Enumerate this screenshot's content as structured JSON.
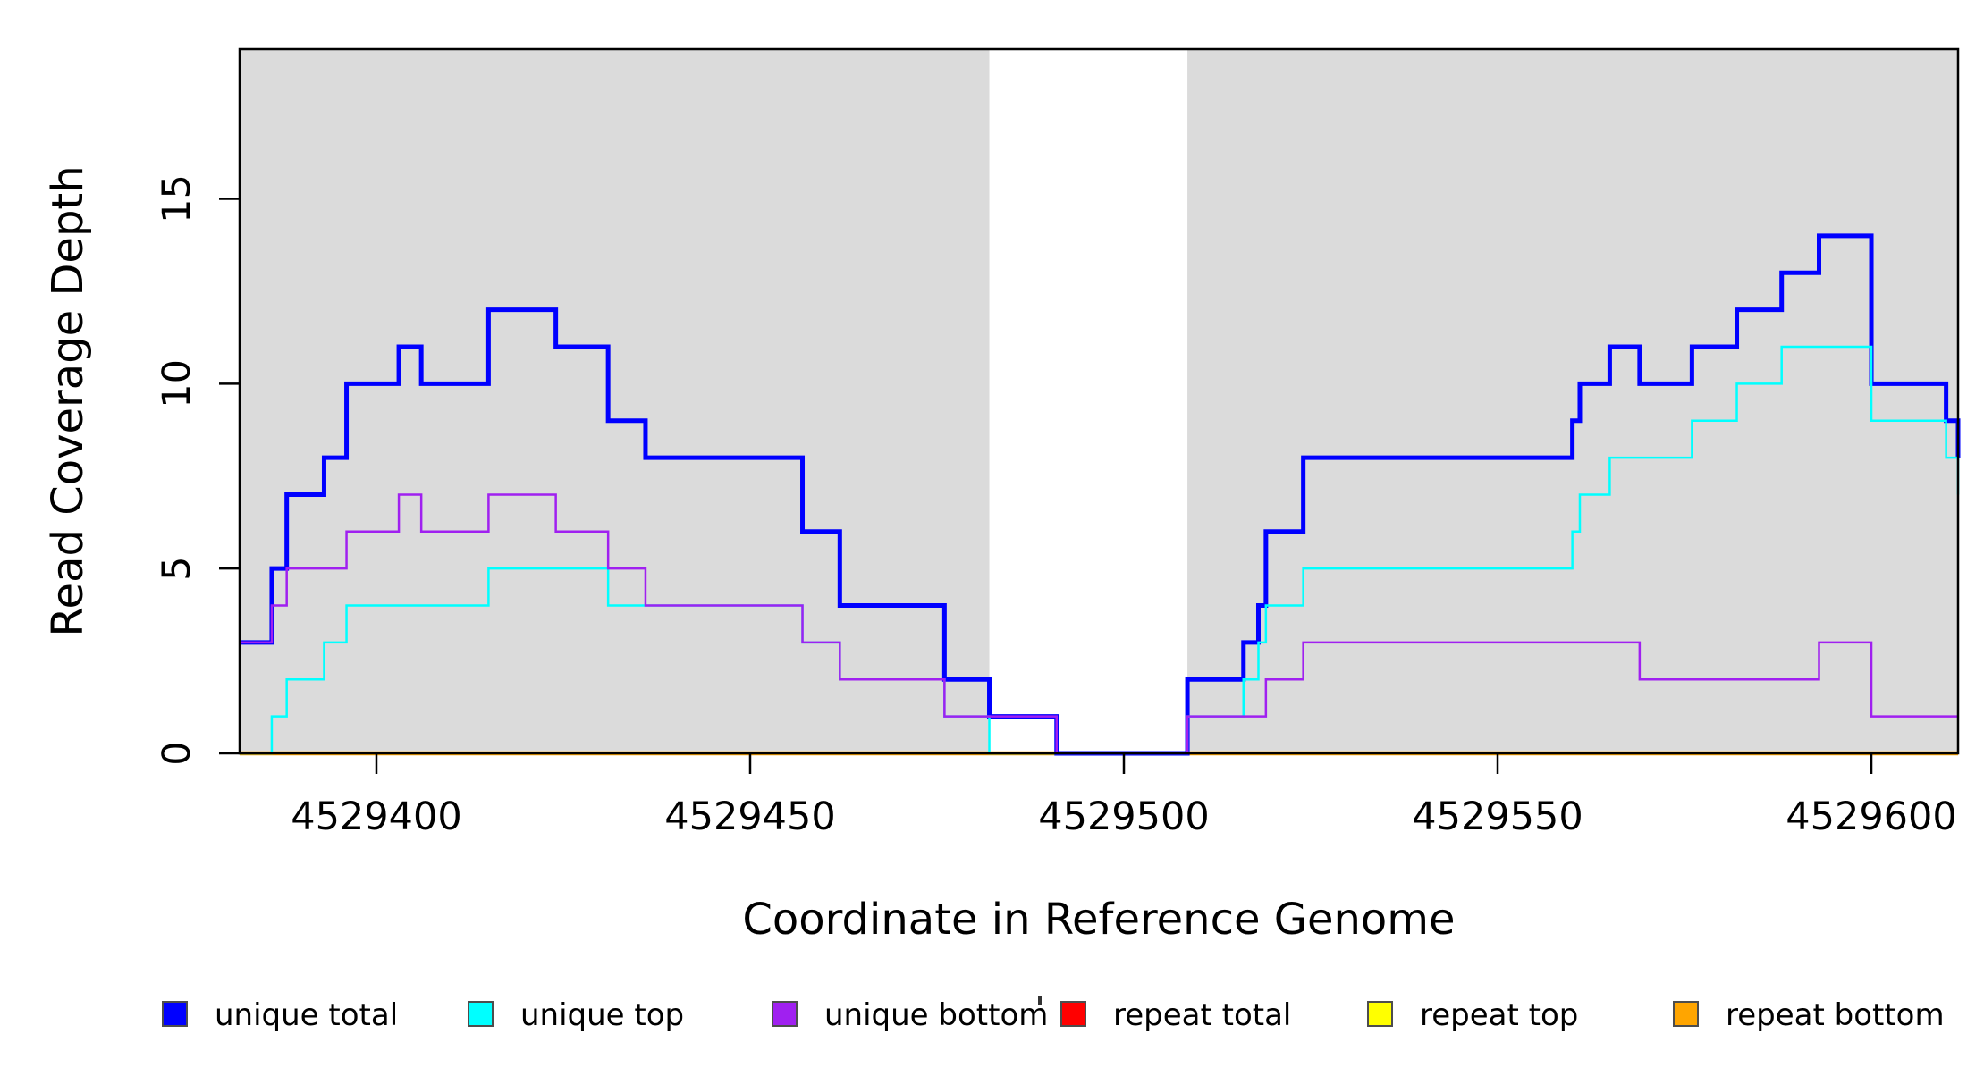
{
  "figure": {
    "x_axis_title": "Coordinate in Reference Genome",
    "y_axis_title": "Read Coverage Depth",
    "background_color": "#FFFFFF",
    "shaded_band_color": "#DBDBDB"
  },
  "legend": {
    "items": [
      {
        "label": "unique total",
        "color": "#0000FF"
      },
      {
        "label": "unique top",
        "color": "#00FFFF"
      },
      {
        "label": "unique bottom",
        "color": "#A020F0"
      },
      {
        "label": "repeat total",
        "color": "#FF0000"
      },
      {
        "label": "repeat top",
        "color": "#FFFF00"
      },
      {
        "label": "repeat bottom",
        "color": "#FFA500"
      }
    ]
  },
  "chart_data": {
    "type": "line",
    "subtype": "step-after-coverage",
    "title": "",
    "xlabel": "Coordinate in Reference Genome",
    "ylabel": "Read Coverage Depth",
    "xlim": [
      4529381.7,
      4529611.6
    ],
    "ylim": [
      0,
      19.05
    ],
    "grid": false,
    "legend_position": "bottom",
    "x_ticks": [
      {
        "value": 4529400,
        "label": "4529400"
      },
      {
        "value": 4529450,
        "label": "4529450"
      },
      {
        "value": 4529500,
        "label": "4529500"
      },
      {
        "value": 4529550,
        "label": "4529550"
      },
      {
        "value": 4529600,
        "label": "4529600"
      }
    ],
    "y_ticks": [
      {
        "value": 0,
        "label": "0"
      },
      {
        "value": 5,
        "label": "5"
      },
      {
        "value": 10,
        "label": "10"
      },
      {
        "value": 15,
        "label": "15"
      }
    ],
    "shaded_regions": [
      {
        "from": 4529381.7,
        "to": 4529482.0
      },
      {
        "from": 4529508.5,
        "to": 4529611.6
      }
    ],
    "series": [
      {
        "name": "repeat total",
        "color": "#FF0000",
        "line_width": 2.5,
        "points": [
          [
            4529381.7,
            0
          ]
        ]
      },
      {
        "name": "repeat top",
        "color": "#FFFF00",
        "line_width": 2.5,
        "points": [
          [
            4529381.7,
            0
          ]
        ]
      },
      {
        "name": "repeat bottom",
        "color": "#FFA500",
        "line_width": 4.5,
        "points": [
          [
            4529381.7,
            0
          ]
        ]
      },
      {
        "name": "unique total",
        "color": "#0000FF",
        "line_width": 5,
        "points": [
          [
            4529381.7,
            3
          ],
          [
            4529386,
            5
          ],
          [
            4529388,
            7
          ],
          [
            4529393,
            8
          ],
          [
            4529396,
            10
          ],
          [
            4529403,
            11
          ],
          [
            4529406,
            10
          ],
          [
            4529415,
            12
          ],
          [
            4529424,
            11
          ],
          [
            4529431,
            9
          ],
          [
            4529436,
            8
          ],
          [
            4529457,
            6
          ],
          [
            4529462,
            4
          ],
          [
            4529476,
            2
          ],
          [
            4529482,
            1
          ],
          [
            4529491,
            0
          ],
          [
            4529508.5,
            2
          ],
          [
            4529516,
            3
          ],
          [
            4529518,
            4
          ],
          [
            4529519,
            6
          ],
          [
            4529524,
            8
          ],
          [
            4529560,
            9
          ],
          [
            4529561,
            10
          ],
          [
            4529565,
            11
          ],
          [
            4529569,
            10
          ],
          [
            4529576,
            11
          ],
          [
            4529582,
            12
          ],
          [
            4529588,
            13
          ],
          [
            4529593,
            14
          ],
          [
            4529600,
            10
          ],
          [
            4529610,
            9
          ],
          [
            4529611.6,
            8
          ]
        ]
      },
      {
        "name": "unique top",
        "color": "#00FFFF",
        "line_width": 2.5,
        "points": [
          [
            4529381.7,
            0
          ],
          [
            4529386,
            1
          ],
          [
            4529388,
            2
          ],
          [
            4529393,
            3
          ],
          [
            4529396,
            4
          ],
          [
            4529415,
            5
          ],
          [
            4529431,
            4
          ],
          [
            4529457,
            3
          ],
          [
            4529462,
            2
          ],
          [
            4529476,
            1
          ],
          [
            4529482,
            0
          ],
          [
            4529508.5,
            1
          ],
          [
            4529516,
            2
          ],
          [
            4529518,
            3
          ],
          [
            4529519,
            4
          ],
          [
            4529524,
            5
          ],
          [
            4529560,
            6
          ],
          [
            4529561,
            7
          ],
          [
            4529565,
            8
          ],
          [
            4529576,
            9
          ],
          [
            4529582,
            10
          ],
          [
            4529588,
            11
          ],
          [
            4529600,
            9
          ],
          [
            4529610,
            8
          ],
          [
            4529611.6,
            7
          ]
        ]
      },
      {
        "name": "unique bottom",
        "color": "#A020F0",
        "line_width": 2.5,
        "points": [
          [
            4529381.7,
            3
          ],
          [
            4529386,
            4
          ],
          [
            4529388,
            5
          ],
          [
            4529396,
            6
          ],
          [
            4529403,
            7
          ],
          [
            4529406,
            6
          ],
          [
            4529415,
            7
          ],
          [
            4529424,
            6
          ],
          [
            4529431,
            5
          ],
          [
            4529436,
            4
          ],
          [
            4529457,
            3
          ],
          [
            4529462,
            2
          ],
          [
            4529476,
            1
          ],
          [
            4529491,
            0
          ],
          [
            4529508.5,
            1
          ],
          [
            4529519,
            2
          ],
          [
            4529524,
            3
          ],
          [
            4529569,
            2
          ],
          [
            4529593,
            3
          ],
          [
            4529600,
            1
          ]
        ]
      }
    ]
  }
}
